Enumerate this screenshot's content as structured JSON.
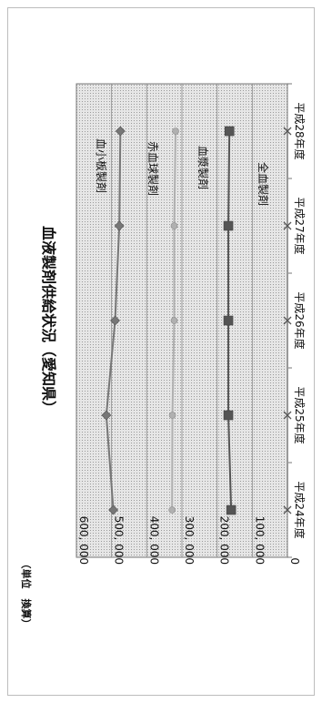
{
  "chart_data": {
    "type": "line",
    "title": "血液製剤供給状況（愛知県）",
    "unit_label": "（単位　換算）",
    "categories": [
      "平成24年度",
      "平成25年度",
      "平成26年度",
      "平成27年度",
      "平成28年度"
    ],
    "ylim": [
      0,
      600000
    ],
    "y_ticks": [
      0,
      100000,
      200000,
      300000,
      400000,
      500000,
      600000
    ],
    "y_tick_labels": [
      "0",
      "100, 000",
      "200, 000",
      "300, 000",
      "400, 000",
      "500, 000",
      "600, 000"
    ],
    "grid": true,
    "series": [
      {
        "name": "血小板製剤",
        "values": [
          495000,
          515000,
          490000,
          478000,
          475000
        ],
        "color": "#777777",
        "marker": "diamond"
      },
      {
        "name": "赤血球製剤",
        "values": [
          328000,
          327000,
          322000,
          322000,
          318000
        ],
        "color": "#b0b0b0",
        "marker": "circle"
      },
      {
        "name": "血漿製剤",
        "values": [
          160000,
          168000,
          168000,
          168000,
          165000
        ],
        "color": "#555555",
        "marker": "square"
      },
      {
        "name": "全血製剤",
        "values": [
          0,
          0,
          0,
          0,
          0
        ],
        "color": "#999999",
        "marker": "x"
      }
    ]
  }
}
